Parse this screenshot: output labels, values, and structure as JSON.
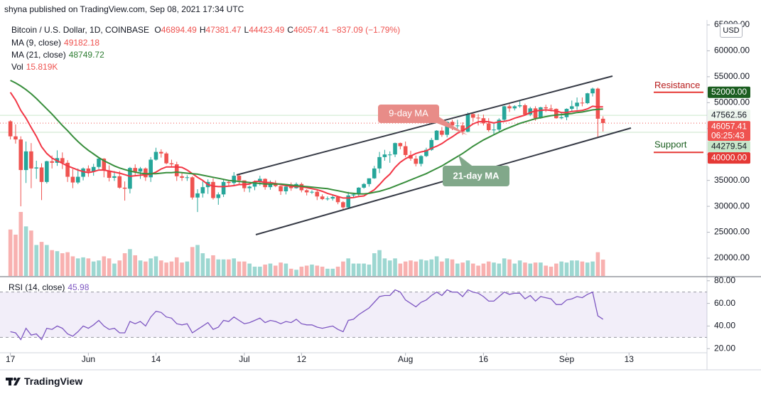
{
  "header": {
    "published": "shyna published on TradingView.com, Sep 08, 2021 17:34 UTC"
  },
  "chart_data": {
    "type": "candlestick",
    "title": "Bitcoin / U.S. Dollar, 1D, COINBASE",
    "ohlc_prefixes": [
      "O",
      "H",
      "L",
      "C"
    ],
    "change": "−837.09 (−1.79%)",
    "currency": "USD",
    "countdown": "06:25:43",
    "start_date": "2021-05-17",
    "xlim": [
      "2021-05-15",
      "2021-09-28"
    ],
    "xticks": [
      {
        "value": "2021-05-17",
        "label": "17"
      },
      {
        "value": "2021-06-01",
        "label": "Jun"
      },
      {
        "value": "2021-06-14",
        "label": "14"
      },
      {
        "value": "2021-07-01",
        "label": "Jul"
      },
      {
        "value": "2021-07-12",
        "label": "12"
      },
      {
        "value": "2021-08-01",
        "label": "Aug"
      },
      {
        "value": "2021-08-16",
        "label": "16"
      },
      {
        "value": "2021-09-01",
        "label": "Sep"
      },
      {
        "value": "2021-09-13",
        "label": "13"
      }
    ],
    "ylim": [
      16570,
      65960
    ],
    "yticks": [
      {
        "value": 65000,
        "label": "65000.00"
      },
      {
        "value": 60000,
        "label": "60000.00"
      },
      {
        "value": 55000,
        "label": "55000.00"
      },
      {
        "value": 50000,
        "label": "50000.00"
      },
      {
        "value": 45000,
        "label": "45000.00"
      },
      {
        "value": 40000,
        "label": "40000.00"
      },
      {
        "value": 35000,
        "label": "35000.00"
      },
      {
        "value": 30000,
        "label": "30000.00"
      },
      {
        "value": 25000,
        "label": "25000.00"
      },
      {
        "value": 20000,
        "label": "20000.00"
      }
    ],
    "grid": false,
    "up_color": "#26a69a",
    "down_color": "#ef5350",
    "open": [
      46400,
      43500,
      42900,
      37000,
      40600,
      37300,
      37500,
      34700,
      38700,
      38400,
      39300,
      38400,
      35700,
      34600,
      35700,
      37300,
      36700,
      37600,
      39200,
      36900,
      35500,
      35800,
      33600,
      33400,
      37400,
      36700,
      37300,
      35600,
      39000,
      40500,
      40200,
      38300,
      38100,
      35800,
      35500,
      35600,
      31700,
      32500,
      33700,
      34700,
      31600,
      32300,
      34700,
      34500,
      35900,
      35000,
      33500,
      33800,
      34700,
      35300,
      33700,
      34200,
      33900,
      32900,
      33800,
      33500,
      34300,
      33100,
      32700,
      32800,
      31900,
      31400,
      31500,
      31800,
      30800,
      29800,
      32100,
      32300,
      33600,
      34300,
      35400,
      37300,
      39500,
      40000,
      40000,
      42200,
      41600,
      39900,
      39200,
      38200,
      39700,
      40900,
      42800,
      44600,
      43800,
      46300,
      45600,
      45600,
      44400,
      47800,
      47100,
      47000,
      46000,
      44700,
      44800,
      46700,
      49300,
      48900,
      49300,
      49500,
      47700,
      48900,
      47000,
      49100,
      48900,
      48800,
      47000,
      47200,
      48800,
      49300,
      50000,
      49900,
      51800,
      52700,
      46894.49
    ],
    "high": [
      46600,
      45800,
      43500,
      42500,
      42200,
      38800,
      38300,
      38800,
      39800,
      40800,
      40400,
      38900,
      37200,
      37300,
      37500,
      37900,
      38200,
      39500,
      39300,
      37900,
      36800,
      36800,
      34800,
      37600,
      38100,
      37600,
      37500,
      39500,
      41300,
      41000,
      40500,
      39000,
      38600,
      36400,
      36000,
      35800,
      33300,
      34800,
      35200,
      35400,
      32700,
      35300,
      35100,
      36600,
      36100,
      35000,
      34000,
      35000,
      35900,
      35400,
      35000,
      35000,
      34000,
      34100,
      34600,
      34600,
      34600,
      33300,
      33100,
      33200,
      32300,
      31900,
      32200,
      31900,
      31000,
      32800,
      32600,
      33700,
      34500,
      35400,
      37800,
      40500,
      40900,
      40600,
      42300,
      42300,
      42500,
      40700,
      39800,
      39900,
      41300,
      43200,
      44700,
      45300,
      46400,
      46700,
      46700,
      46200,
      48100,
      48100,
      47800,
      47700,
      47000,
      46000,
      47000,
      49400,
      49700,
      49500,
      50500,
      49800,
      49200,
      49300,
      49200,
      49600,
      49600,
      48900,
      48200,
      48900,
      50400,
      51000,
      51000,
      51900,
      52900,
      52900,
      47381.47
    ],
    "low": [
      42900,
      42100,
      30000,
      34500,
      33500,
      35300,
      31200,
      34400,
      37300,
      37800,
      37200,
      34700,
      33500,
      34300,
      35000,
      35700,
      35900,
      37200,
      35600,
      34800,
      34900,
      33400,
      31100,
      32500,
      35800,
      35300,
      34900,
      34700,
      38800,
      39400,
      38100,
      37500,
      34900,
      34900,
      34900,
      31300,
      28900,
      31700,
      32400,
      31300,
      30300,
      31800,
      33900,
      33900,
      34200,
      32800,
      32700,
      33100,
      34000,
      33200,
      33200,
      33700,
      32200,
      32300,
      33000,
      33400,
      32700,
      32100,
      32400,
      31200,
      31200,
      31100,
      31100,
      30400,
      29300,
      29500,
      31700,
      32000,
      33400,
      33800,
      35300,
      36400,
      38800,
      38400,
      39500,
      41000,
      39500,
      38800,
      37700,
      37700,
      39500,
      40700,
      42800,
      43400,
      43300,
      44700,
      45000,
      43800,
      44300,
      46300,
      45600,
      45600,
      44400,
      43900,
      44300,
      46500,
      48200,
      48500,
      49000,
      47700,
      47400,
      46500,
      46900,
      48200,
      48300,
      46900,
      46800,
      46600,
      48400,
      48600,
      49300,
      49700,
      51200,
      43300,
      44423.49
    ],
    "close": [
      43500,
      42900,
      37000,
      40600,
      37300,
      37500,
      34700,
      38700,
      38400,
      39300,
      38400,
      35700,
      34600,
      35700,
      37300,
      36700,
      37600,
      39200,
      36900,
      35500,
      35800,
      33600,
      33400,
      37400,
      36700,
      37300,
      35600,
      39000,
      40500,
      40200,
      38300,
      38100,
      35800,
      35500,
      35600,
      31700,
      32500,
      33700,
      34700,
      31600,
      32300,
      34700,
      34500,
      35900,
      35000,
      33500,
      33800,
      34700,
      35300,
      33700,
      34200,
      33900,
      32900,
      33800,
      33500,
      34300,
      33100,
      32700,
      32800,
      31900,
      31400,
      31500,
      31800,
      30800,
      29800,
      32100,
      32300,
      33600,
      34300,
      35400,
      37300,
      39500,
      40000,
      40000,
      42200,
      41600,
      39900,
      39200,
      38200,
      39700,
      40900,
      42800,
      44600,
      43800,
      46300,
      45600,
      45600,
      44400,
      47800,
      47100,
      47000,
      46000,
      44700,
      44800,
      46700,
      49300,
      48900,
      49300,
      49500,
      47700,
      48900,
      47000,
      49100,
      48900,
      48800,
      47000,
      47200,
      48800,
      49300,
      50000,
      49900,
      51800,
      52700,
      46900,
      46057.41
    ],
    "moving_averages": [
      {
        "name": "MA (9, close)",
        "color": "#f23645",
        "values": [
          52000,
          50500,
          48500,
          47000,
          45200,
          43500,
          41500,
          40200,
          39300,
          38800,
          38300,
          37800,
          37400,
          37000,
          36700,
          36500,
          36700,
          37000,
          37000,
          36800,
          36600,
          36400,
          36100,
          35800,
          35900,
          36000,
          36100,
          36200,
          36600,
          37200,
          37600,
          37600,
          37600,
          37500,
          37000,
          36300,
          35600,
          35000,
          34200,
          33900,
          33800,
          33800,
          33900,
          34000,
          34200,
          34200,
          34300,
          34800,
          34800,
          34600,
          34600,
          34400,
          34200,
          34000,
          33900,
          33800,
          33800,
          33600,
          33400,
          33200,
          32900,
          32500,
          32200,
          31900,
          31600,
          31600,
          31700,
          31900,
          32000,
          32600,
          33200,
          34200,
          35300,
          36200,
          37500,
          38500,
          39200,
          39700,
          40200,
          40500,
          40700,
          41200,
          41600,
          42100,
          42800,
          43400,
          44100,
          44600,
          45200,
          45900,
          46300,
          46400,
          46300,
          46100,
          46300,
          46400,
          46600,
          47000,
          47300,
          47600,
          48100,
          48400,
          48500,
          48600,
          48500,
          48400,
          48100,
          48100,
          48300,
          48400,
          48500,
          48800,
          49300,
          49200,
          49182.18
        ]
      },
      {
        "name": "MA (21, close)",
        "color": "#388e3c",
        "values": [
          54300,
          53800,
          53200,
          52500,
          51700,
          50800,
          49800,
          48800,
          47800,
          46700,
          45600,
          44600,
          43500,
          42500,
          41600,
          40800,
          40100,
          39400,
          38800,
          38300,
          37800,
          37400,
          37100,
          36800,
          36600,
          36400,
          36300,
          36300,
          36300,
          36400,
          36500,
          36500,
          36600,
          36500,
          36400,
          36300,
          36200,
          36000,
          35800,
          35600,
          35400,
          35200,
          35000,
          34900,
          34800,
          34700,
          34600,
          34500,
          34400,
          34300,
          34300,
          34300,
          34300,
          34200,
          34100,
          34000,
          33900,
          33800,
          33700,
          33600,
          33500,
          33400,
          33200,
          33000,
          32800,
          32600,
          32500,
          32400,
          32400,
          32500,
          32700,
          32900,
          33200,
          33500,
          33900,
          34300,
          34700,
          35100,
          35500,
          35900,
          36300,
          36800,
          37300,
          37800,
          38400,
          39000,
          39600,
          40200,
          40900,
          41600,
          42200,
          42800,
          43300,
          43800,
          44300,
          44800,
          45200,
          45600,
          46000,
          46300,
          46600,
          46900,
          47100,
          47300,
          47500,
          47600,
          47700,
          47800,
          47900,
          48100,
          48200,
          48400,
          48600,
          48700,
          48749.72
        ]
      }
    ],
    "volume": {
      "name": "Vol",
      "last_label": "15.819K",
      "values": [
        45000,
        40000,
        62000,
        48000,
        44000,
        30000,
        33000,
        30000,
        25000,
        24000,
        22000,
        23000,
        19000,
        17000,
        18000,
        17000,
        14000,
        15000,
        19000,
        17000,
        12000,
        15000,
        22000,
        26000,
        20000,
        15000,
        14000,
        17000,
        19000,
        15000,
        13000,
        14000,
        18000,
        13000,
        14000,
        28000,
        30000,
        22000,
        17000,
        20000,
        16000,
        16000,
        16000,
        17000,
        14000,
        14000,
        12000,
        9000,
        9000,
        11000,
        12000,
        10000,
        13000,
        12000,
        7000,
        6000,
        9000,
        10000,
        11000,
        10000,
        9000,
        7000,
        7000,
        9000,
        14000,
        17000,
        12000,
        12000,
        12000,
        11000,
        22000,
        25000,
        17000,
        15000,
        17000,
        12000,
        14000,
        15000,
        14000,
        16000,
        15000,
        16000,
        19000,
        14000,
        17000,
        16000,
        12000,
        13000,
        15000,
        12000,
        10000,
        12000,
        14000,
        13000,
        12000,
        17000,
        16000,
        12000,
        15000,
        13000,
        12000,
        13000,
        13000,
        10000,
        9000,
        12000,
        14000,
        13000,
        15000,
        15000,
        14000,
        13000,
        14000,
        23000,
        15819
      ]
    },
    "price_levels": [
      {
        "value": 52000,
        "label": "52000.00",
        "color": "#1b5e20"
      },
      {
        "value": 47562.56,
        "label": "47562.56",
        "color": "#eef6ee"
      },
      {
        "value": 44279.54,
        "label": "44279.54",
        "color": "#c8e6c9"
      },
      {
        "value": 40000,
        "label": "40000.00",
        "color": "#e53935"
      }
    ],
    "annotations": {
      "resistance": "Resistance",
      "support": "Support",
      "ma9": "9-day MA",
      "ma21": "21-day MA"
    },
    "rsi": {
      "name": "RSI (14, close)",
      "color": "#7e57c2",
      "band": [
        30,
        70
      ],
      "ylim": [
        17,
        83
      ],
      "yticks": [
        {
          "value": 80,
          "label": "80.00"
        },
        {
          "value": 60,
          "label": "60.00"
        },
        {
          "value": 40,
          "label": "40.00"
        },
        {
          "value": 20,
          "label": "20.00"
        }
      ],
      "values": [
        35,
        34,
        28,
        38,
        32,
        33,
        28,
        38,
        37,
        40,
        38,
        33,
        31,
        35,
        40,
        38,
        41,
        45,
        40,
        37,
        38,
        34,
        34,
        44,
        42,
        44,
        40,
        48,
        53,
        52,
        48,
        47,
        42,
        41,
        42,
        34,
        37,
        40,
        43,
        37,
        39,
        45,
        44,
        48,
        45,
        42,
        43,
        45,
        47,
        43,
        45,
        44,
        42,
        44,
        43,
        46,
        42,
        41,
        41,
        39,
        38,
        39,
        40,
        37,
        35,
        45,
        46,
        50,
        53,
        56,
        61,
        66,
        67,
        67,
        72,
        70,
        63,
        60,
        57,
        61,
        63,
        67,
        70,
        67,
        72,
        70,
        70,
        66,
        72,
        70,
        69,
        66,
        62,
        62,
        66,
        70,
        68,
        69,
        69,
        64,
        67,
        62,
        66,
        65,
        64,
        59,
        59,
        63,
        64,
        66,
        65,
        68,
        70,
        49,
        45.98
      ]
    }
  },
  "footer": {
    "brand": "TradingView"
  }
}
